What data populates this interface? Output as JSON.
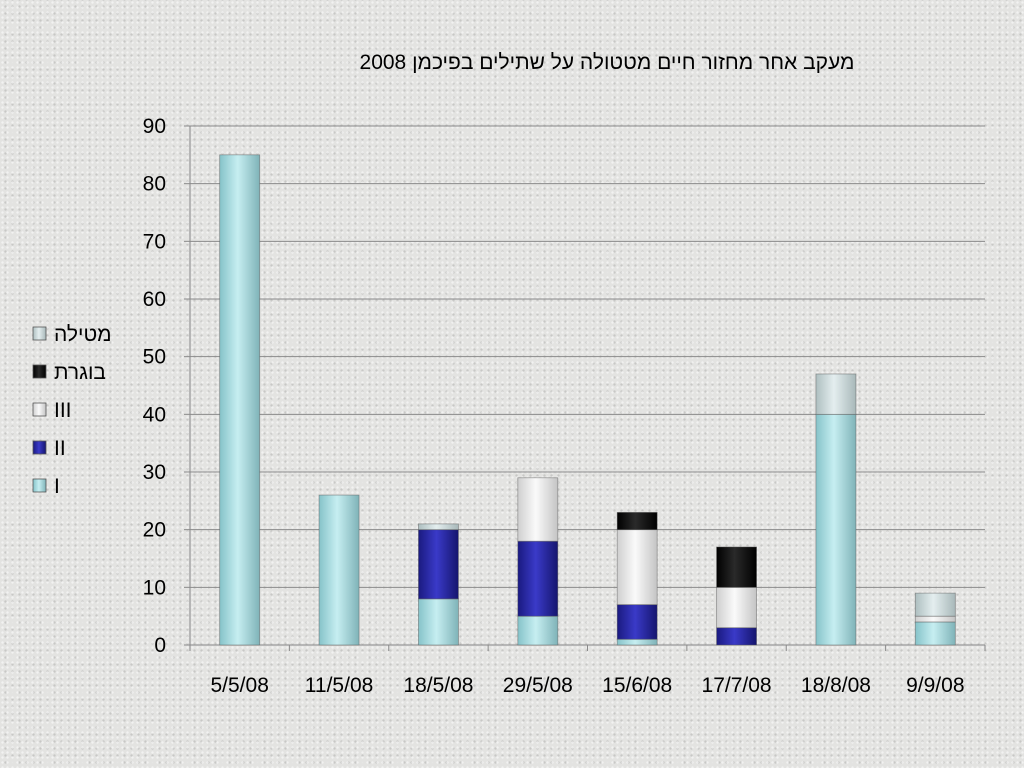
{
  "chart_data": {
    "type": "bar",
    "stacked": true,
    "title": "מעקב אחר מחזור חיים מטטולה על שתילים בפיכמן 2008",
    "categories": [
      "5/5/08",
      "11/5/08",
      "18/5/08",
      "29/5/08",
      "15/6/08",
      "17/7/08",
      "18/8/08",
      "9/9/08"
    ],
    "series": [
      {
        "name": "I",
        "color": "#a9dde2",
        "values": [
          85,
          26,
          8,
          5,
          1,
          0,
          40,
          4
        ]
      },
      {
        "name": "II",
        "color": "#22229a",
        "values": [
          0,
          0,
          12,
          13,
          6,
          3,
          0,
          0
        ]
      },
      {
        "name": "III",
        "color": "#e6e6e6",
        "values": [
          0,
          0,
          0,
          11,
          13,
          7,
          0,
          1
        ]
      },
      {
        "name": "בוגרת",
        "color": "#0d0d0d",
        "values": [
          0,
          0,
          0,
          0,
          3,
          7,
          0,
          0
        ]
      },
      {
        "name": "מטילה",
        "color": "#cfdcdd",
        "values": [
          0,
          0,
          1,
          0,
          0,
          0,
          7,
          4
        ]
      }
    ],
    "legend_order": [
      "מטילה",
      "בוגרת",
      "III",
      "II",
      "I"
    ],
    "y_ticks": [
      0,
      10,
      20,
      30,
      40,
      50,
      60,
      70,
      80,
      90
    ],
    "ylim": [
      0,
      90
    ],
    "grid": true,
    "legend_position": "left"
  }
}
